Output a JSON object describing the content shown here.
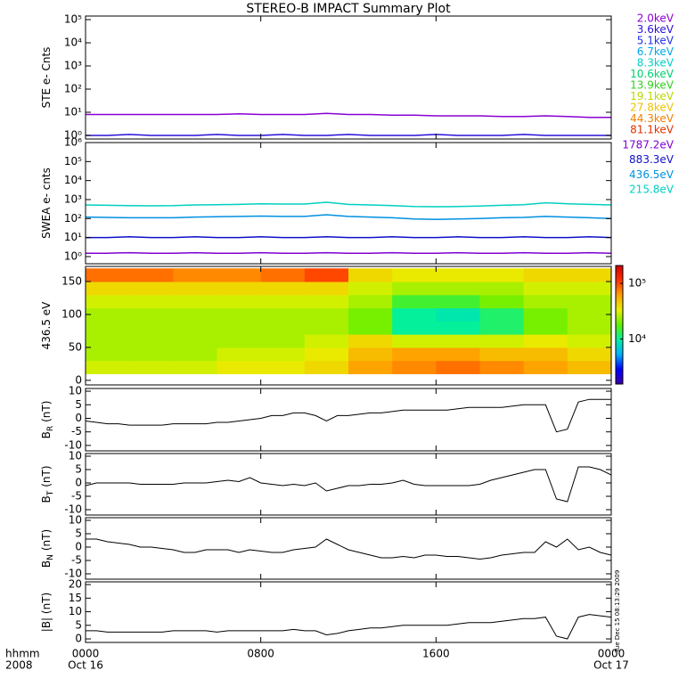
{
  "figure": {
    "title": "STEREO-B IMPACT Summary Plot",
    "time_label": "hhmm",
    "year_label": "2008",
    "timestamp": "Tue Dec 15 08:13:29 2009",
    "xlim": [
      0,
      24
    ],
    "xticks": [
      {
        "value": 0,
        "label": "0000"
      },
      {
        "value": 8,
        "label": "0800"
      },
      {
        "value": 16,
        "label": "1600"
      },
      {
        "value": 24,
        "label": "0000"
      }
    ],
    "dates": [
      {
        "value": 0,
        "label": "Oct 16"
      },
      {
        "value": 24,
        "label": "Oct 17"
      }
    ]
  },
  "chart_data": [
    {
      "type": "line",
      "ylabel": "STE e- Cnts",
      "log_y": true,
      "ylim": [
        0.7,
        143000
      ],
      "yticks": [
        {
          "value": 1,
          "label": "10⁰"
        },
        {
          "value": 10,
          "label": "10¹"
        },
        {
          "value": 100,
          "label": "10²"
        },
        {
          "value": 1000,
          "label": "10³"
        },
        {
          "value": 10000,
          "label": "10⁴"
        },
        {
          "value": 100000,
          "label": "10⁵"
        }
      ],
      "x": [
        0,
        1,
        2,
        3,
        4,
        5,
        6,
        7,
        8,
        9,
        10,
        11,
        12,
        13,
        14,
        15,
        16,
        17,
        18,
        19,
        20,
        21,
        22,
        23,
        24
      ],
      "series": [
        {
          "name": "2.0keV",
          "color": "#8a00d4",
          "values": [
            8,
            8,
            8,
            8,
            8,
            8,
            8,
            8.5,
            8,
            8,
            8,
            9,
            8,
            8,
            7.5,
            7.5,
            7,
            7,
            7,
            6.5,
            6.5,
            7,
            6.5,
            6,
            6
          ]
        },
        {
          "name": "3.6keV",
          "color": "#2a10d8",
          "values": [
            1,
            1,
            1.1,
            1,
            1,
            1,
            1.1,
            1,
            1,
            1.1,
            1,
            1,
            1.1,
            1,
            1,
            1,
            1.1,
            1,
            1,
            1,
            1.1,
            1,
            1,
            1,
            1
          ]
        },
        {
          "name": "5.1keV",
          "color": "#2030e8",
          "values": [
            null,
            null,
            null,
            null,
            null,
            null,
            null,
            null,
            null,
            null,
            null,
            null,
            null,
            null,
            null,
            null,
            null,
            null,
            null,
            null,
            null,
            null,
            null,
            null,
            null
          ]
        },
        {
          "name": "6.7keV",
          "color": "#00a8e8",
          "values": [
            null,
            null,
            null,
            null,
            null,
            null,
            null,
            null,
            null,
            null,
            null,
            null,
            null,
            null,
            null,
            null,
            null,
            null,
            null,
            null,
            null,
            null,
            null,
            null,
            null
          ]
        },
        {
          "name": "8.3keV",
          "color": "#00d0c8",
          "values": [
            null,
            null,
            null,
            null,
            null,
            null,
            null,
            null,
            null,
            null,
            null,
            null,
            null,
            null,
            null,
            null,
            null,
            null,
            null,
            null,
            null,
            null,
            null,
            null,
            null
          ]
        },
        {
          "name": "10.6keV",
          "color": "#00d070",
          "values": [
            null,
            null,
            null,
            null,
            null,
            null,
            null,
            null,
            null,
            null,
            null,
            null,
            null,
            null,
            null,
            null,
            null,
            null,
            null,
            null,
            null,
            null,
            null,
            null,
            null
          ]
        },
        {
          "name": "13.9keV",
          "color": "#30d020",
          "values": [
            null,
            null,
            null,
            null,
            null,
            null,
            null,
            null,
            null,
            null,
            null,
            null,
            null,
            null,
            null,
            null,
            null,
            null,
            null,
            null,
            null,
            null,
            null,
            null,
            null
          ]
        },
        {
          "name": "19.1keV",
          "color": "#b8d800",
          "values": [
            null,
            null,
            null,
            null,
            null,
            null,
            null,
            null,
            null,
            null,
            null,
            null,
            null,
            null,
            null,
            null,
            null,
            null,
            null,
            null,
            null,
            null,
            null,
            null,
            null
          ]
        },
        {
          "name": "27.8keV",
          "color": "#f0c000",
          "values": [
            null,
            null,
            null,
            null,
            null,
            null,
            null,
            null,
            null,
            null,
            null,
            null,
            null,
            null,
            null,
            null,
            null,
            null,
            null,
            null,
            null,
            null,
            null,
            null,
            null
          ]
        },
        {
          "name": "44.3keV",
          "color": "#f08000",
          "values": [
            null,
            null,
            null,
            null,
            null,
            null,
            null,
            null,
            null,
            null,
            null,
            null,
            null,
            null,
            null,
            null,
            null,
            null,
            null,
            null,
            null,
            null,
            null,
            null,
            null
          ]
        },
        {
          "name": "81.1keV",
          "color": "#e03000",
          "values": [
            null,
            null,
            null,
            null,
            null,
            null,
            null,
            null,
            null,
            null,
            null,
            null,
            null,
            null,
            null,
            null,
            null,
            null,
            null,
            null,
            null,
            null,
            null,
            null,
            null
          ]
        }
      ]
    },
    {
      "type": "line",
      "ylabel": "SWEA e- cnts",
      "log_y": true,
      "ylim": [
        0.42,
        1000000
      ],
      "yticks": [
        {
          "value": 1,
          "label": "10⁰"
        },
        {
          "value": 10,
          "label": "10¹"
        },
        {
          "value": 100,
          "label": "10²"
        },
        {
          "value": 1000,
          "label": "10³"
        },
        {
          "value": 10000,
          "label": "10⁴"
        },
        {
          "value": 100000,
          "label": "10⁵"
        },
        {
          "value": 1000000,
          "label": "10⁶"
        }
      ],
      "x": [
        0,
        1,
        2,
        3,
        4,
        5,
        6,
        7,
        8,
        9,
        10,
        11,
        12,
        13,
        14,
        15,
        16,
        17,
        18,
        19,
        20,
        21,
        22,
        23,
        24
      ],
      "series": [
        {
          "name": "1787.2eV",
          "color": "#8000d0",
          "values": [
            1.5,
            1.5,
            1.6,
            1.5,
            1.5,
            1.6,
            1.5,
            1.5,
            1.6,
            1.5,
            1.5,
            1.6,
            1.5,
            1.5,
            1.6,
            1.5,
            1.5,
            1.6,
            1.5,
            1.5,
            1.6,
            1.5,
            1.5,
            1.6,
            1.5
          ]
        },
        {
          "name": "883.3eV",
          "color": "#1010c8",
          "values": [
            10,
            10,
            11,
            10,
            10,
            11,
            10,
            10,
            11,
            10,
            10,
            11,
            10,
            10,
            11,
            10,
            10,
            11,
            10,
            10,
            11,
            10,
            10,
            11,
            10
          ]
        },
        {
          "name": "436.5eV",
          "color": "#0090e0",
          "values": [
            120,
            115,
            110,
            110,
            110,
            120,
            125,
            130,
            135,
            130,
            130,
            160,
            130,
            120,
            110,
            95,
            90,
            95,
            100,
            110,
            115,
            130,
            120,
            110,
            100
          ]
        },
        {
          "name": "215.8eV",
          "color": "#00d0c0",
          "values": [
            520,
            500,
            480,
            470,
            480,
            520,
            540,
            560,
            600,
            580,
            580,
            720,
            560,
            520,
            480,
            430,
            420,
            430,
            460,
            500,
            540,
            680,
            600,
            560,
            520
          ]
        }
      ]
    },
    {
      "type": "heatmap",
      "ylabel": "436.5 eV",
      "ylim": [
        -7,
        173
      ],
      "yticks": [
        0,
        50,
        100,
        150
      ],
      "xbins": [
        0,
        2,
        4,
        6,
        8,
        10,
        12,
        14,
        16,
        18,
        20,
        22,
        24
      ],
      "ybins": [
        10,
        30,
        50,
        70,
        90,
        110,
        130,
        150,
        170
      ],
      "z": [
        [
          30000,
          30000,
          30000,
          35000,
          35000,
          40000,
          60000,
          70000,
          80000,
          70000,
          60000,
          50000
        ],
        [
          25000,
          25000,
          25000,
          30000,
          30000,
          35000,
          50000,
          60000,
          60000,
          50000,
          50000,
          40000
        ],
        [
          25000,
          25000,
          25000,
          25000,
          25000,
          30000,
          40000,
          30000,
          30000,
          30000,
          35000,
          30000
        ],
        [
          25000,
          25000,
          25000,
          25000,
          25000,
          25000,
          20000,
          10000,
          10000,
          12000,
          20000,
          25000
        ],
        [
          25000,
          25000,
          25000,
          25000,
          25000,
          25000,
          20000,
          10000,
          9000,
          12000,
          20000,
          25000
        ],
        [
          30000,
          30000,
          30000,
          30000,
          30000,
          30000,
          25000,
          15000,
          15000,
          20000,
          25000,
          25000
        ],
        [
          40000,
          40000,
          40000,
          40000,
          40000,
          40000,
          30000,
          25000,
          25000,
          25000,
          30000,
          30000
        ],
        [
          80000,
          80000,
          70000,
          70000,
          80000,
          100000,
          40000,
          35000,
          35000,
          35000,
          40000,
          40000
        ]
      ],
      "zlim": [
        1550,
        210000
      ],
      "log_z": true,
      "zticks": [
        {
          "value": 10000,
          "label": "10⁴"
        },
        {
          "value": 100000,
          "label": "10⁵"
        }
      ],
      "colormap": [
        "#3a00a8",
        "#0000ff",
        "#00b0ff",
        "#00f0a0",
        "#60f000",
        "#e8f000",
        "#ffa000",
        "#ff3000",
        "#d00000"
      ]
    },
    {
      "type": "line",
      "ylabel": "B",
      "ylabel_sub": "R",
      "ylabel_unit": "(nT)",
      "ylim": [
        -12,
        11
      ],
      "yticks": [
        -10,
        -5,
        0,
        5,
        10
      ],
      "color": "#000000",
      "x": [
        0,
        0.5,
        1,
        1.5,
        2,
        2.5,
        3,
        3.5,
        4,
        4.5,
        5,
        5.5,
        6,
        6.5,
        7,
        7.5,
        8,
        8.5,
        9,
        9.5,
        10,
        10.5,
        11,
        11.5,
        12,
        12.5,
        13,
        13.5,
        14,
        14.5,
        15,
        15.5,
        16,
        16.5,
        17,
        17.5,
        18,
        18.5,
        19,
        19.5,
        20,
        20.5,
        21,
        21.5,
        22,
        22.5,
        23,
        23.5,
        24
      ],
      "values": [
        -1,
        -1.5,
        -2,
        -2,
        -2.5,
        -2.5,
        -2.5,
        -2.5,
        -2,
        -2,
        -2,
        -2,
        -1.5,
        -1.5,
        -1,
        -0.5,
        0,
        1,
        1,
        2,
        2,
        1,
        -1,
        1,
        1,
        1.5,
        2,
        2,
        2.5,
        3,
        3,
        3,
        3,
        3,
        3.5,
        4,
        4,
        4,
        4,
        4.5,
        5,
        5,
        5,
        -5,
        -4,
        6,
        7,
        7,
        7
      ]
    },
    {
      "type": "line",
      "ylabel": "B",
      "ylabel_sub": "T",
      "ylabel_unit": "(nT)",
      "ylim": [
        -12,
        11
      ],
      "yticks": [
        -10,
        -5,
        0,
        5,
        10
      ],
      "color": "#000000",
      "x": [
        0,
        0.5,
        1,
        1.5,
        2,
        2.5,
        3,
        3.5,
        4,
        4.5,
        5,
        5.5,
        6,
        6.5,
        7,
        7.5,
        8,
        8.5,
        9,
        9.5,
        10,
        10.5,
        11,
        11.5,
        12,
        12.5,
        13,
        13.5,
        14,
        14.5,
        15,
        15.5,
        16,
        16.5,
        17,
        17.5,
        18,
        18.5,
        19,
        19.5,
        20,
        20.5,
        21,
        21.5,
        22,
        22.5,
        23,
        23.5,
        24
      ],
      "values": [
        -1,
        0,
        0,
        0,
        0,
        -0.5,
        -0.5,
        -0.5,
        -0.5,
        0,
        0,
        0,
        0.5,
        1,
        0.5,
        2,
        0,
        -0.5,
        -1,
        -0.5,
        -1,
        0,
        -3,
        -2,
        -1,
        -1,
        -0.5,
        -0.5,
        0,
        1,
        -0.5,
        -1,
        -1,
        -1,
        -1,
        -1,
        -0.5,
        1,
        2,
        3,
        4,
        5,
        5,
        -6,
        -7,
        6,
        6,
        5,
        3
      ]
    },
    {
      "type": "line",
      "ylabel": "B",
      "ylabel_sub": "N",
      "ylabel_unit": "(nT)",
      "ylim": [
        -12,
        11
      ],
      "yticks": [
        -10,
        -5,
        0,
        5,
        10
      ],
      "color": "#000000",
      "x": [
        0,
        0.5,
        1,
        1.5,
        2,
        2.5,
        3,
        3.5,
        4,
        4.5,
        5,
        5.5,
        6,
        6.5,
        7,
        7.5,
        8,
        8.5,
        9,
        9.5,
        10,
        10.5,
        11,
        11.5,
        12,
        12.5,
        13,
        13.5,
        14,
        14.5,
        15,
        15.5,
        16,
        16.5,
        17,
        17.5,
        18,
        18.5,
        19,
        19.5,
        20,
        20.5,
        21,
        21.5,
        22,
        22.5,
        23,
        23.5,
        24
      ],
      "values": [
        3,
        3,
        2,
        1.5,
        1,
        0,
        0,
        -0.5,
        -1,
        -2,
        -2,
        -1,
        -1,
        -1,
        -2,
        -1,
        -1.5,
        -2,
        -2,
        -1,
        -0.5,
        0,
        3,
        1,
        -1,
        -2,
        -3,
        -4,
        -4,
        -3.5,
        -4,
        -3,
        -3,
        -3.5,
        -3.5,
        -4,
        -4.5,
        -4,
        -3,
        -2.5,
        -2,
        -2,
        2,
        0,
        3,
        -1,
        0,
        -2,
        -3
      ]
    },
    {
      "type": "line",
      "ylabel": "|B| (nT)",
      "ylim": [
        -1.3,
        21
      ],
      "yticks": [
        0,
        5,
        10,
        15,
        20
      ],
      "color": "#000000",
      "x": [
        0,
        0.5,
        1,
        1.5,
        2,
        2.5,
        3,
        3.5,
        4,
        4.5,
        5,
        5.5,
        6,
        6.5,
        7,
        7.5,
        8,
        8.5,
        9,
        9.5,
        10,
        10.5,
        11,
        11.5,
        12,
        12.5,
        13,
        13.5,
        14,
        14.5,
        15,
        15.5,
        16,
        16.5,
        17,
        17.5,
        18,
        18.5,
        19,
        19.5,
        20,
        20.5,
        21,
        21.5,
        22,
        22.5,
        23,
        23.5,
        24
      ],
      "values": [
        3,
        3,
        2.5,
        2.5,
        2.5,
        2.5,
        2.5,
        2.5,
        3,
        3,
        3,
        3,
        2.5,
        3,
        3,
        3,
        3,
        3,
        3,
        3.5,
        3,
        3,
        1.5,
        2,
        3,
        3.5,
        4,
        4,
        4.5,
        5,
        5,
        5,
        5,
        5,
        5.5,
        6,
        6,
        6,
        6.5,
        7,
        7.5,
        7.5,
        8,
        1,
        0,
        8,
        9,
        8.5,
        8
      ]
    }
  ]
}
